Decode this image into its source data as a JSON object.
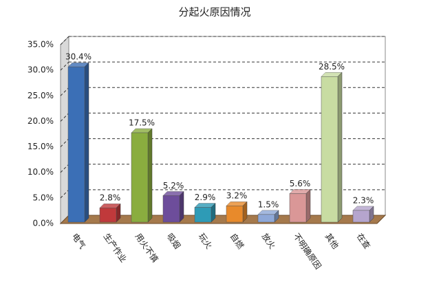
{
  "chart_data": {
    "type": "bar3d",
    "title": "分起火原因情况",
    "categories": [
      "电气",
      "生产作业",
      "用火不慎",
      "吸烟",
      "玩火",
      "自燃",
      "放火",
      "不明确原因",
      "其他",
      "在查"
    ],
    "values": [
      30.4,
      2.8,
      17.5,
      5.2,
      2.9,
      3.2,
      1.5,
      5.6,
      28.5,
      2.3
    ],
    "value_labels": [
      "30.4%",
      "2.8%",
      "17.5%",
      "5.2%",
      "2.9%",
      "3.2%",
      "1.5%",
      "5.6%",
      "28.5%",
      "2.3%"
    ],
    "colors": [
      "#3b6fb6",
      "#c0393b",
      "#8aad3f",
      "#6d4d9b",
      "#2e9bb6",
      "#e88a2b",
      "#8ea8d8",
      "#da9797",
      "#c8dca2",
      "#b5a5cd"
    ],
    "ylim": [
      0,
      35
    ],
    "yticks": [
      {
        "value": 0,
        "label": "0.0%"
      },
      {
        "value": 5,
        "label": "5.0%"
      },
      {
        "value": 10,
        "label": "10.0%"
      },
      {
        "value": 15,
        "label": "15.0%"
      },
      {
        "value": 20,
        "label": "20.0%"
      },
      {
        "value": 25,
        "label": "25.0%"
      },
      {
        "value": 30,
        "label": "30.0%"
      },
      {
        "value": 35,
        "label": "35.0%"
      }
    ],
    "grid": true
  }
}
